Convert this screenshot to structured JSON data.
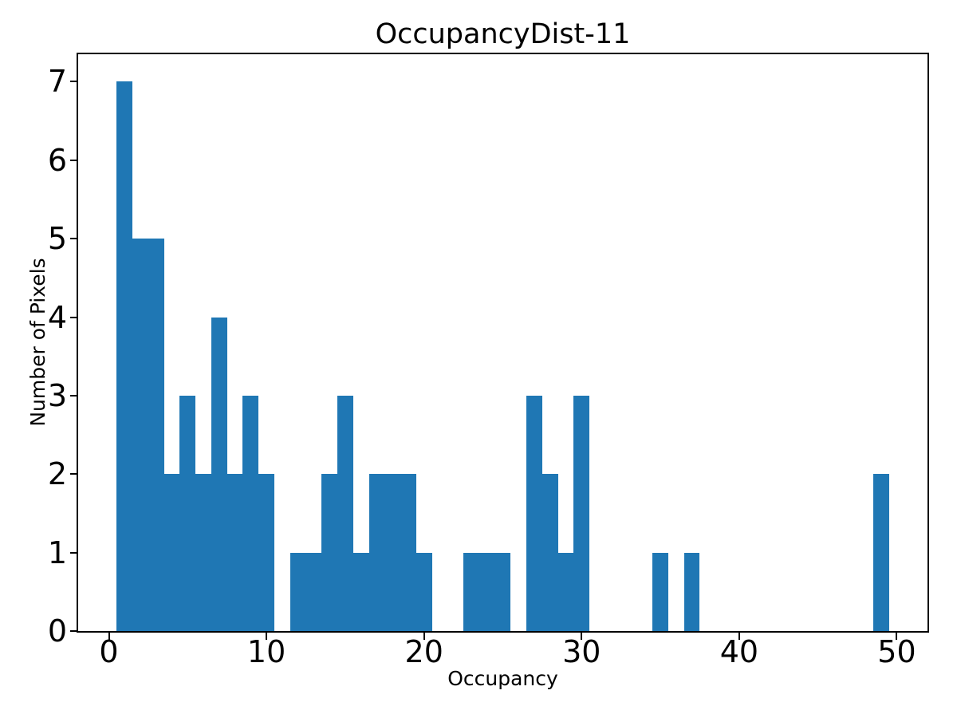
{
  "figure": {
    "background_color": "#ffffff",
    "text_color": "#000000"
  },
  "chart_data": {
    "type": "bar",
    "subtype": "histogram",
    "title": "OccupancyDist-11",
    "xlabel": "Occupancy",
    "ylabel": "Number of Pixels",
    "bar_color": "#1f77b4",
    "bin_width": 1,
    "bin_edges_range": [
      0.5,
      49.5
    ],
    "bin_centers": [
      1,
      2,
      3,
      4,
      5,
      6,
      7,
      8,
      9,
      10,
      11,
      12,
      13,
      14,
      15,
      16,
      17,
      18,
      19,
      20,
      21,
      22,
      23,
      24,
      25,
      26,
      27,
      28,
      29,
      30,
      31,
      32,
      33,
      34,
      35,
      36,
      37,
      38,
      39,
      40,
      41,
      42,
      43,
      44,
      45,
      46,
      47,
      48,
      49
    ],
    "values": [
      7,
      5,
      5,
      2,
      3,
      2,
      4,
      2,
      3,
      2,
      0,
      1,
      1,
      2,
      3,
      1,
      2,
      2,
      2,
      1,
      0,
      0,
      1,
      1,
      1,
      0,
      3,
      2,
      1,
      3,
      0,
      0,
      0,
      0,
      1,
      0,
      1,
      0,
      0,
      0,
      0,
      0,
      0,
      0,
      0,
      0,
      0,
      0,
      2
    ],
    "xlim": [
      -1.95,
      51.95
    ],
    "ylim": [
      0,
      7.35
    ],
    "xticks": [
      0,
      10,
      20,
      30,
      40,
      50
    ],
    "yticks": [
      0,
      1,
      2,
      3,
      4,
      5,
      6,
      7
    ],
    "grid": false,
    "legend": false
  }
}
